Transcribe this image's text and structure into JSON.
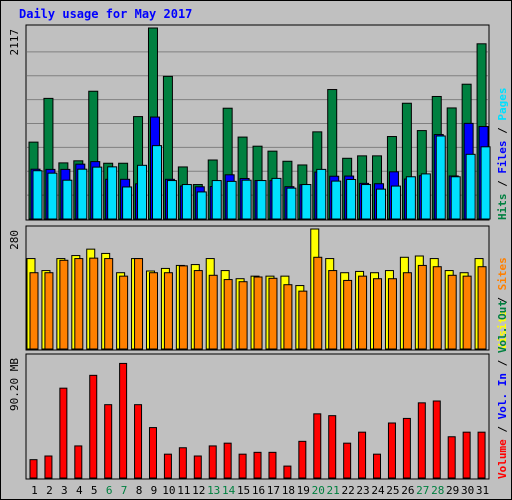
{
  "chart_data": {
    "type": "bar",
    "title": "Daily usage for May 2017",
    "categories": [
      "1",
      "2",
      "3",
      "4",
      "5",
      "6",
      "7",
      "8",
      "9",
      "10",
      "11",
      "12",
      "13",
      "14",
      "15",
      "16",
      "17",
      "18",
      "19",
      "20",
      "21",
      "22",
      "23",
      "24",
      "25",
      "26",
      "27",
      "28",
      "29",
      "30",
      "31"
    ],
    "weekend_days": [
      "6",
      "7",
      "13",
      "14",
      "20",
      "21",
      "27",
      "28"
    ],
    "panels": [
      {
        "name": "hits-files-pages",
        "ymax_label": "2117",
        "ylim": [
          0,
          2117
        ],
        "side_legend": [
          "Hits",
          "Files",
          "Pages"
        ],
        "series": [
          {
            "name": "Hits",
            "color": "#008040",
            "values": [
              852,
              1337,
              622,
              645,
              1416,
              618,
              618,
              1135,
              2117,
              1581,
              577,
              382,
              654,
              1228,
              908,
              807,
              752,
              640,
              599,
              966,
              1435,
              673,
              700,
              700,
              914,
              1283,
              980,
              1358,
              1231,
              1494,
              1942
            ]
          },
          {
            "name": "Files",
            "color": "#0000ff",
            "values": [
              552,
              550,
              550,
              608,
              636,
              440,
              440,
              390,
              1130,
              440,
              366,
              357,
              360,
              490,
              449,
              426,
              425,
              358,
              380,
              520,
              474,
              476,
              395,
              391,
              523,
              443,
              480,
              936,
              477,
              1060,
              1025
            ]
          },
          {
            "name": "Pages",
            "color": "#00e0ff",
            "values": [
              535,
              508,
              430,
              552,
              575,
              578,
              355,
              595,
              813,
              426,
              382,
              300,
              426,
              417,
              430,
              426,
              450,
              342,
              382,
              550,
              420,
              438,
              382,
              331,
              365,
              468,
              500,
              920,
              468,
              717,
              800
            ]
          }
        ]
      },
      {
        "name": "visits-sites",
        "ymax_label": "280",
        "ylim": [
          0,
          280
        ],
        "side_legend": [
          "Visits",
          "Sites"
        ],
        "series": [
          {
            "name": "Visits",
            "color": "#ffff00",
            "values": [
              211,
              183,
              211,
              218,
              233,
              223,
              178,
              211,
              182,
              188,
              195,
              197,
              211,
              183,
              164,
              170,
              170,
              170,
              148,
              280,
              211,
              178,
              181,
              178,
              183,
              214,
              217,
              211,
              183,
              178,
              211
            ]
          },
          {
            "name": "Sites",
            "color": "#ff8000",
            "values": [
              178,
              178,
              207,
              211,
              212,
              211,
              170,
              211,
              178,
              178,
              194,
              183,
              172,
              162,
              157,
              168,
              165,
              150,
              135,
              214,
              183,
              160,
              170,
              164,
              164,
              178,
              195,
              192,
              172,
              170,
              192
            ]
          }
        ]
      },
      {
        "name": "volume",
        "ymax_label": "90.20 MB",
        "ylim": [
          0,
          132
        ],
        "side_legend": [
          "Volume",
          "Vol. In",
          "Vol. Out"
        ],
        "series": [
          {
            "name": "Volume",
            "color": "#ff0000",
            "values": [
              20,
              24,
              98,
              35,
              112,
              80,
              125,
              80,
              55,
              26,
              33,
              24,
              35,
              38,
              26,
              28,
              28,
              13,
              40,
              70,
              68,
              38,
              50,
              26,
              60,
              65,
              82,
              84,
              45,
              50,
              50
            ]
          }
        ]
      }
    ]
  }
}
